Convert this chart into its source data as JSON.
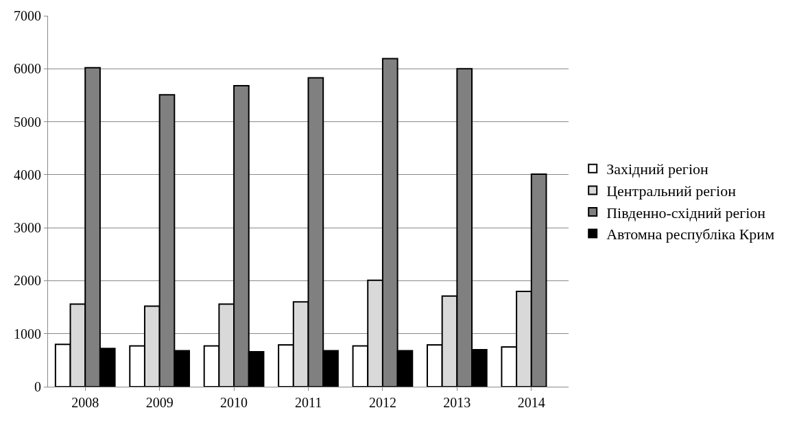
{
  "chart_data": {
    "type": "bar",
    "categories": [
      "2008",
      "2009",
      "2010",
      "2011",
      "2012",
      "2013",
      "2014"
    ],
    "series": [
      {
        "name": "Західний регіон",
        "color": "#ffffff",
        "values": [
          800,
          770,
          770,
          790,
          770,
          790,
          750
        ]
      },
      {
        "name": "Центральний регіон",
        "color": "#d9d9d9",
        "values": [
          1560,
          1520,
          1560,
          1600,
          2010,
          1710,
          1800
        ]
      },
      {
        "name": "Південно-східний регіон",
        "color": "#808080",
        "values": [
          6020,
          5510,
          5680,
          5830,
          6190,
          6000,
          4010
        ]
      },
      {
        "name": "Автомна республіка Крим",
        "color": "#000000",
        "values": [
          720,
          680,
          660,
          680,
          680,
          700,
          null
        ]
      }
    ],
    "ylim": [
      0,
      7000
    ],
    "yticks": [
      0,
      1000,
      2000,
      3000,
      4000,
      5000,
      6000,
      7000
    ],
    "grid": "y",
    "legend": "right"
  }
}
